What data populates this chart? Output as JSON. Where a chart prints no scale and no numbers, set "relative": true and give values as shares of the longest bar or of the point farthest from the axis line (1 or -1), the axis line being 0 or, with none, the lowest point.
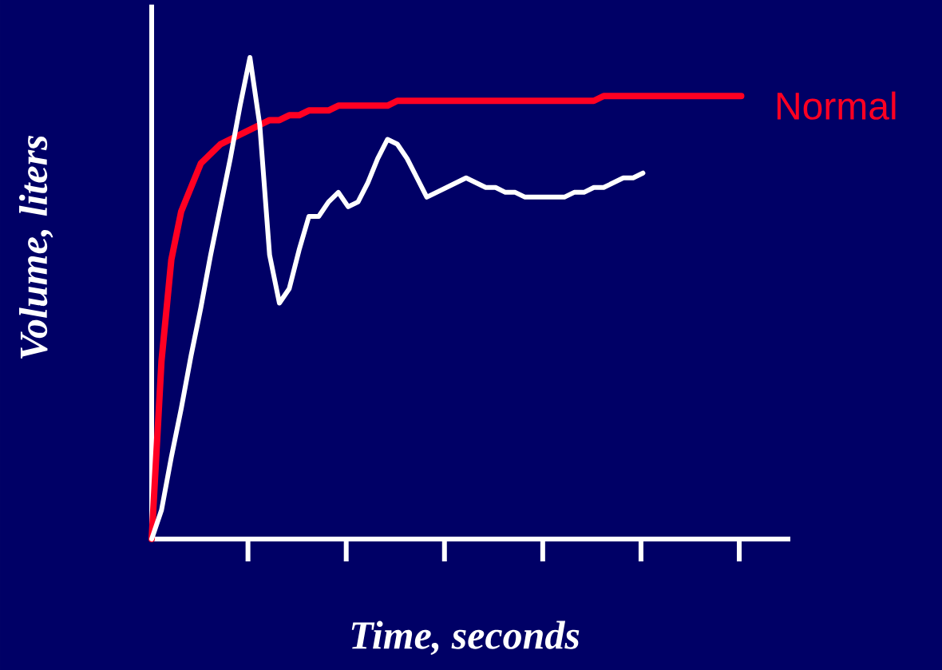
{
  "chart_data": {
    "type": "line",
    "relative": true,
    "xlabel": "Time, seconds",
    "ylabel": "Volume, liters",
    "categories": [
      null,
      null,
      null,
      null,
      null,
      null,
      null,
      null,
      null,
      null,
      null,
      null,
      null,
      null,
      null,
      null,
      null,
      null,
      null,
      null,
      null,
      null,
      null,
      null,
      null,
      null,
      null,
      null,
      null,
      null,
      null,
      null,
      null,
      null,
      null,
      null,
      null,
      null,
      null,
      null,
      null,
      null,
      null,
      null,
      null,
      null,
      null,
      null,
      null,
      null,
      null,
      null,
      null,
      null,
      null,
      null,
      null,
      null,
      null,
      null,
      null,
      null,
      null,
      null,
      null,
      null
    ],
    "series": [
      {
        "name": "Normal",
        "color": "#ff0022",
        "values": [
          0,
          0.37,
          0.58,
          0.68,
          0.73,
          0.78,
          0.8,
          0.82,
          0.83,
          0.84,
          0.85,
          0.86,
          0.87,
          0.87,
          0.88,
          0.88,
          0.89,
          0.89,
          0.89,
          0.9,
          0.9,
          0.9,
          0.9,
          0.9,
          0.9,
          0.91,
          0.91,
          0.91,
          0.91,
          0.91,
          0.91,
          0.91,
          0.91,
          0.91,
          0.91,
          0.91,
          0.91,
          0.91,
          0.91,
          0.91,
          0.91,
          0.91,
          0.91,
          0.91,
          0.91,
          0.91,
          0.92,
          0.92,
          0.92,
          0.92,
          0.92,
          0.92,
          0.92,
          0.92,
          0.92,
          0.92,
          0.92,
          0.92,
          0.92,
          0.92,
          0.92,
          null,
          null,
          null,
          null,
          null
        ]
      },
      {
        "color": "#ffffff",
        "values": [
          0,
          0.06,
          0.17,
          0.27,
          0.38,
          0.48,
          0.59,
          0.69,
          0.79,
          0.9,
          1,
          0.86,
          0.59,
          0.49,
          0.52,
          0.6,
          0.67,
          0.67,
          0.7,
          0.72,
          0.69,
          0.7,
          0.74,
          0.79,
          0.83,
          0.82,
          0.79,
          0.75,
          0.71,
          0.72,
          0.73,
          0.74,
          0.75,
          0.74,
          0.73,
          0.73,
          0.72,
          0.72,
          0.71,
          0.71,
          0.71,
          0.71,
          0.71,
          0.72,
          0.72,
          0.73,
          0.73,
          0.74,
          0.75,
          0.75,
          0.76,
          null,
          null,
          null,
          null,
          null,
          null,
          null,
          null,
          null,
          null,
          null,
          null,
          null,
          null,
          null
        ]
      }
    ]
  }
}
